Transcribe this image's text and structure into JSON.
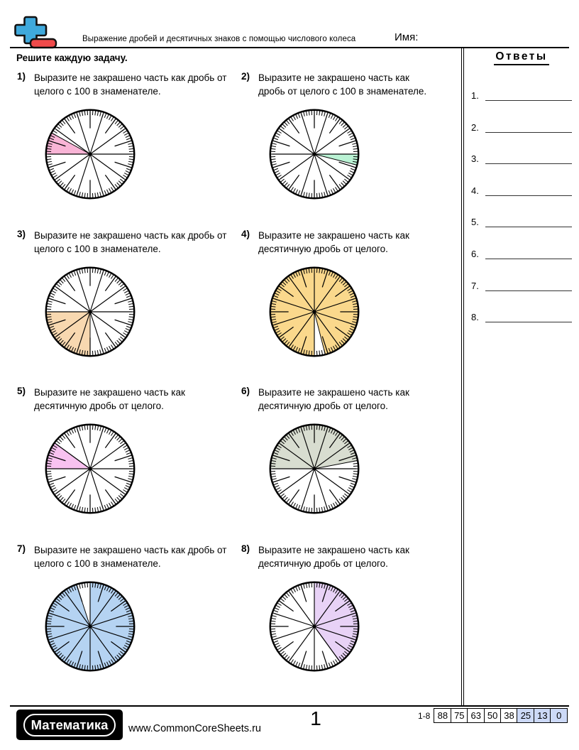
{
  "header": {
    "title": "Выражение дробей и десятичных знаков с помощью числового колеса",
    "name_label": "Имя:",
    "logo": {
      "icon": "plus-minus-icon",
      "blue": "#3FA9DC",
      "red": "#EF4A4A"
    }
  },
  "instructions": "Решите каждую задачу.",
  "answers_panel": {
    "title": "Ответы",
    "items": [
      {
        "num": "1."
      },
      {
        "num": "2."
      },
      {
        "num": "3."
      },
      {
        "num": "4."
      },
      {
        "num": "5."
      },
      {
        "num": "6."
      },
      {
        "num": "7."
      },
      {
        "num": "8."
      }
    ]
  },
  "problems": [
    {
      "num": "1)",
      "text": "Выразите не закрашено часть как дробь от целого с 100 в знаменателе.",
      "wheel": {
        "fill": "#F9B4D6",
        "shaded_from_deg": 151.2,
        "shaded_to_deg": 180,
        "tick_anchor_deg": 0,
        "shaded_hundredths": 8
      }
    },
    {
      "num": "2)",
      "text": "Выразите не закрашено часть как дробь от целого с 100 в знаменателе.",
      "wheel": {
        "fill": "#BAF2D4",
        "shaded_from_deg": -14.4,
        "shaded_to_deg": 0,
        "tick_anchor_deg": 0,
        "shaded_hundredths": 4
      }
    },
    {
      "num": "3)",
      "text": "Выразите не закрашено часть как дробь от целого с 100 в знаменателе.",
      "wheel": {
        "fill": "#F8D8B0",
        "shaded_from_deg": 180,
        "shaded_to_deg": 270,
        "tick_anchor_deg": 0,
        "shaded_hundredths": 25
      }
    },
    {
      "num": "4)",
      "text": "Выразите не закрашено часть как десятичную дробь от целого.",
      "wheel": {
        "fill": "#FAD88C",
        "shaded_from_deg": 284.4,
        "shaded_to_deg": 630,
        "tick_anchor_deg": 90,
        "shaded_hundredths": 96
      }
    },
    {
      "num": "5)",
      "text": "Выразите не закрашено часть как десятичную дробь от целого.",
      "wheel": {
        "fill": "#F8C2F0",
        "shaded_from_deg": 144,
        "shaded_to_deg": 180,
        "tick_anchor_deg": 0,
        "shaded_hundredths": 10
      }
    },
    {
      "num": "6)",
      "text": "Выразите не закрашено часть как десятичную дробь от целого.",
      "wheel": {
        "fill": "#D8DDD0",
        "shaded_from_deg": 10.8,
        "shaded_to_deg": 180,
        "tick_anchor_deg": 0,
        "shaded_hundredths": 47
      }
    },
    {
      "num": "7)",
      "text": "Выразите не закрашено часть как дробь от целого с 100 в знаменателе.",
      "wheel": {
        "fill": "#B5D3F2",
        "shaded_from_deg": 108,
        "shaded_to_deg": 450,
        "tick_anchor_deg": 90,
        "shaded_hundredths": 95
      }
    },
    {
      "num": "8)",
      "text": "Выразите не закрашено часть как десятичную дробь от целого.",
      "wheel": {
        "fill": "#E8D2F6",
        "shaded_from_deg": -54,
        "shaded_to_deg": 90,
        "tick_anchor_deg": 90,
        "shaded_hundredths": 40
      }
    }
  ],
  "footer": {
    "brand": "Математика",
    "website": "www.CommonCoreSheets.ru",
    "page_number": "1",
    "score_table": {
      "label": "1-8",
      "highlight_color": "#CCD9F7",
      "cells": [
        {
          "v": "88",
          "hl": false
        },
        {
          "v": "75",
          "hl": false
        },
        {
          "v": "63",
          "hl": false
        },
        {
          "v": "50",
          "hl": false
        },
        {
          "v": "38",
          "hl": false
        },
        {
          "v": "25",
          "hl": true
        },
        {
          "v": "13",
          "hl": true
        },
        {
          "v": "0",
          "hl": true
        }
      ]
    }
  }
}
